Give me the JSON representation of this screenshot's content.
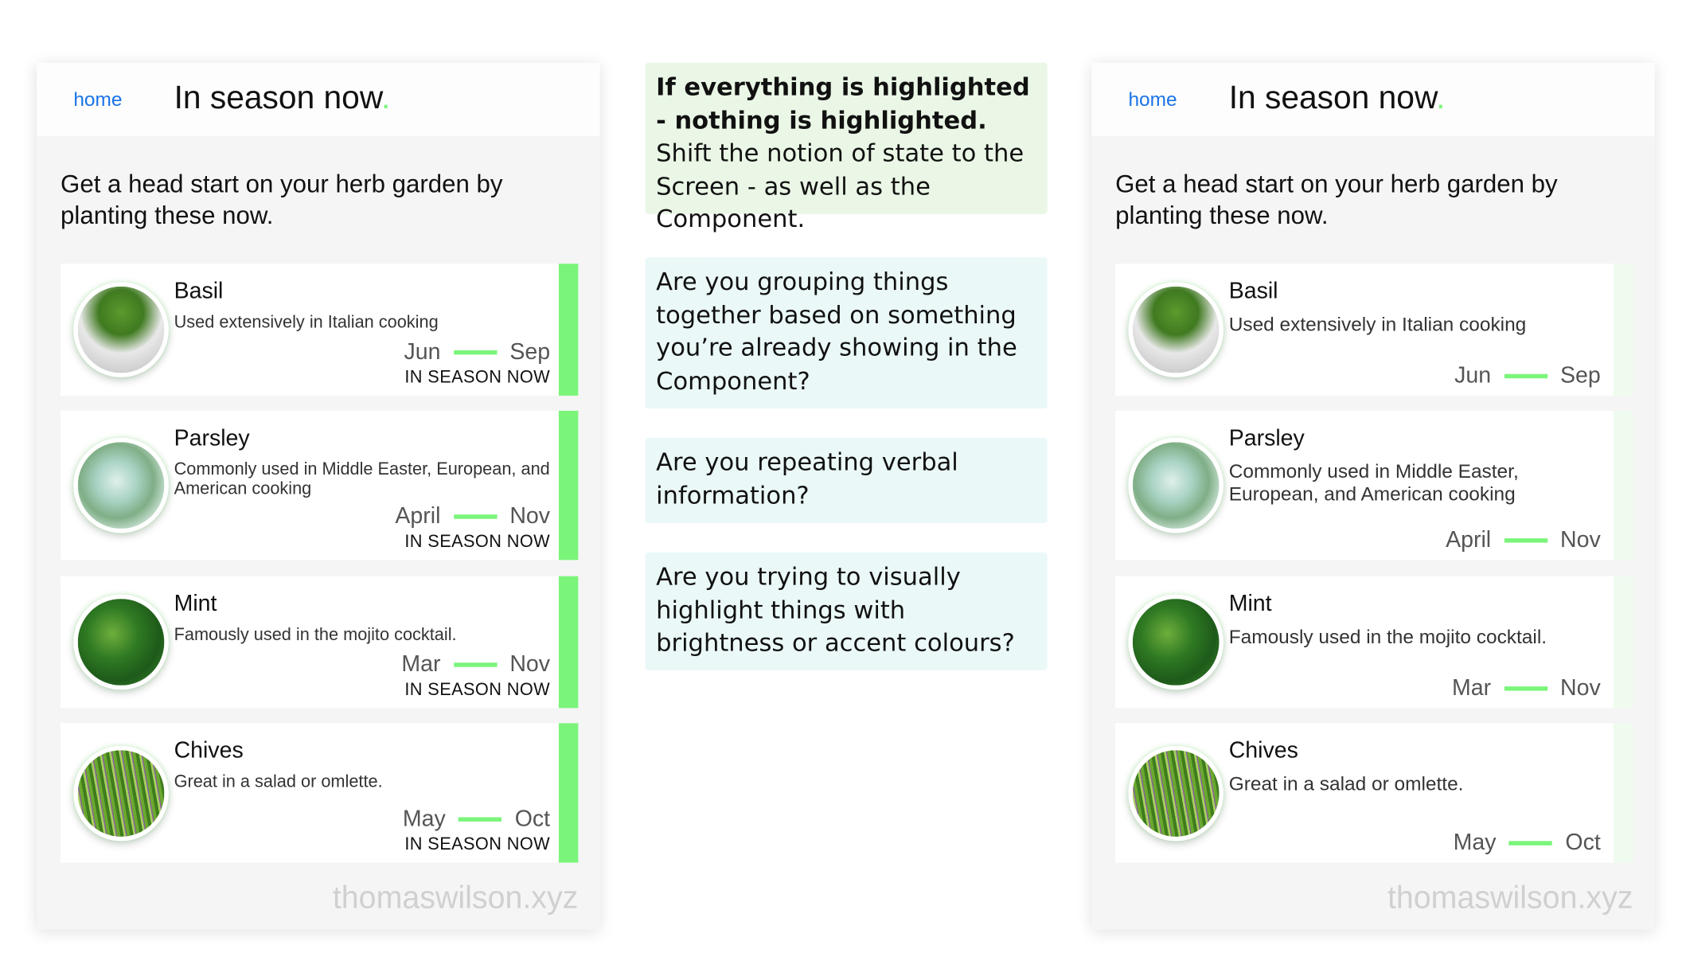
{
  "colors": {
    "accent": "#7af57a",
    "accent_pale": "#effbee",
    "link": "#1a73e8",
    "note_green": "#eaf7e6",
    "note_blue": "#ebf8f8"
  },
  "panels": [
    {
      "nav": "home",
      "title": "In season now",
      "title_dot": ".",
      "intro": "Get a head start on your herb garden by planting these now.",
      "watermark": "thomaswilson.xyz",
      "variant": "highlighted",
      "plants": [
        {
          "name": "Basil",
          "desc": "Used extensively in Italian cooking",
          "from": "Jun",
          "to": "Sep",
          "status": "IN SEASON NOW",
          "image": "basil-image"
        },
        {
          "name": "Parsley",
          "desc": "Commonly used in Middle Easter, European, and American cooking",
          "from": "April",
          "to": "Nov",
          "status": "IN SEASON NOW",
          "image": "parsley-image"
        },
        {
          "name": "Mint",
          "desc": "Famously used in the mojito cocktail.",
          "from": "Mar",
          "to": "Nov",
          "status": "IN SEASON NOW",
          "image": "mint-image"
        },
        {
          "name": "Chives",
          "desc": "Great in a salad or omlette.",
          "from": "May",
          "to": "Oct",
          "status": "IN SEASON NOW",
          "image": "chives-image"
        }
      ]
    },
    {
      "nav": "home",
      "title": "In season now",
      "title_dot": ".",
      "intro": "Get a head start on your herb garden by planting these now.",
      "watermark": "thomaswilson.xyz",
      "variant": "screen-state",
      "plants": [
        {
          "name": "Basil",
          "desc": "Used extensively in Italian cooking",
          "from": "Jun",
          "to": "Sep",
          "image": "basil-image"
        },
        {
          "name": "Parsley",
          "desc": "Commonly used in Middle Easter, European, and American cooking",
          "from": "April",
          "to": "Nov",
          "image": "parsley-image"
        },
        {
          "name": "Mint",
          "desc": "Famously used in the mojito cocktail.",
          "from": "Mar",
          "to": "Nov",
          "image": "mint-image"
        },
        {
          "name": "Chives",
          "desc": "Great in a salad or omlette.",
          "from": "May",
          "to": "Oct",
          "image": "chives-image"
        }
      ]
    }
  ],
  "notes": [
    {
      "bold": "If everything is highlighted - nothing is highlighted.",
      "text": " Shift the notion of state to the Screen - as well as the Component."
    },
    {
      "bold": "",
      "text": "Are you grouping things together based on something you’re already showing in the Component?"
    },
    {
      "bold": "",
      "text": "Are you repeating verbal information?"
    },
    {
      "bold": "",
      "text": "Are you trying to visually highlight things with brightness or accent colours?"
    }
  ]
}
